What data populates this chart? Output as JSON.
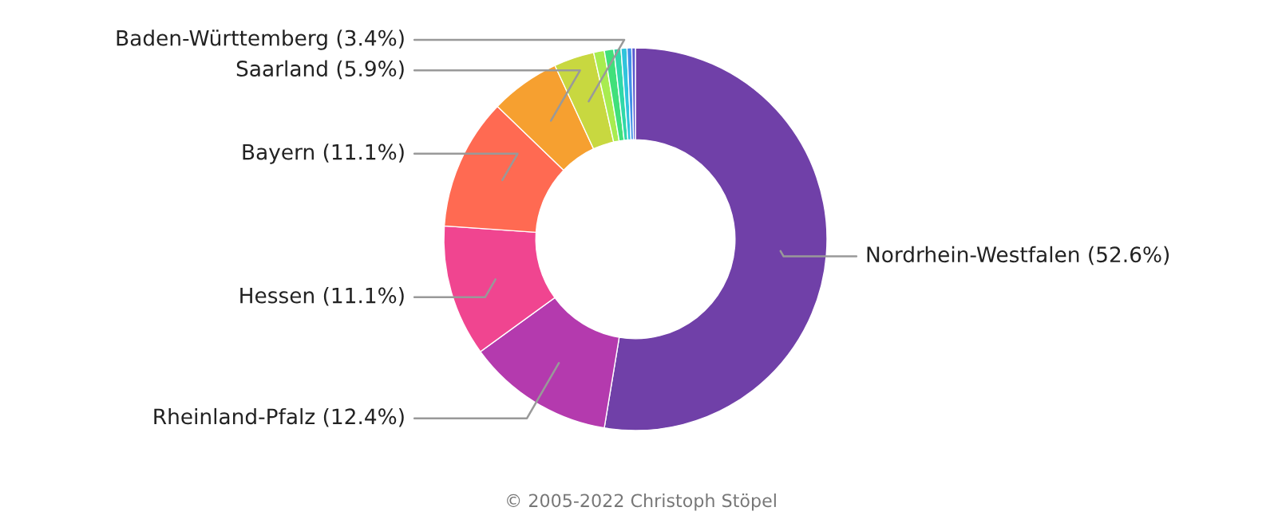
{
  "chart_data": {
    "type": "donut",
    "categories": [
      "Nordrhein-Westfalen (52.6%)",
      "Rheinland-Pfalz (12.4%)",
      "Hessen (11.1%)",
      "Bayern (11.1%)",
      "Saarland (5.9%)",
      "Baden-Württemberg (3.4%)",
      null,
      null,
      null,
      null,
      null,
      null
    ],
    "values": [
      52.6,
      12.4,
      11.1,
      11.1,
      5.9,
      3.4,
      0.9,
      0.8,
      0.6,
      0.5,
      0.4,
      0.3
    ],
    "colors": [
      "#7040a8",
      "#b43aae",
      "#f04590",
      "#ff6a52",
      "#f6a030",
      "#c8d840",
      "#a8ec50",
      "#40e07a",
      "#30d8a8",
      "#30c4dc",
      "#4090e8",
      "#5a5ad0"
    ],
    "annotations": [
      "© 2005-2022 Christoph Stöpel"
    ]
  }
}
